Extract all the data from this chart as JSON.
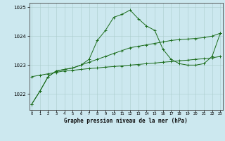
{
  "background_color": "#cce8ef",
  "plot_bg_color": "#cce8ef",
  "grid_color": "#aacccc",
  "line_color": "#1a6b1a",
  "marker_color": "#1a6b1a",
  "title": "Graphe pression niveau de la mer (hPa)",
  "xlim": [
    0,
    23
  ],
  "ylim": [
    1021.45,
    1025.15
  ],
  "yticks": [
    1022,
    1023,
    1024,
    1025
  ],
  "xtick_labels": [
    "0",
    "1",
    "2",
    "3",
    "4",
    "5",
    "6",
    "7",
    "8",
    "9",
    "10",
    "11",
    "12",
    "13",
    "14",
    "15",
    "16",
    "17",
    "18",
    "19",
    "20",
    "21",
    "22",
    "23"
  ],
  "series1_x": [
    0,
    1,
    2,
    3,
    4,
    5,
    6,
    7,
    8,
    9,
    10,
    11,
    12,
    13,
    14,
    15,
    16,
    17,
    18,
    19,
    20,
    21,
    22,
    23
  ],
  "series1_y": [
    1022.6,
    1022.65,
    1022.7,
    1022.75,
    1022.8,
    1022.82,
    1022.85,
    1022.88,
    1022.9,
    1022.93,
    1022.95,
    1022.97,
    1023.0,
    1023.02,
    1023.05,
    1023.07,
    1023.1,
    1023.12,
    1023.15,
    1023.17,
    1023.2,
    1023.22,
    1023.25,
    1023.3
  ],
  "series2_x": [
    0,
    1,
    2,
    3,
    4,
    5,
    6,
    7,
    8,
    9,
    10,
    11,
    12,
    13,
    14,
    15,
    16,
    17,
    18,
    19,
    20,
    21,
    22,
    23
  ],
  "series2_y": [
    1021.65,
    1022.1,
    1022.6,
    1022.8,
    1022.85,
    1022.9,
    1023.0,
    1023.2,
    1023.85,
    1024.2,
    1024.65,
    1024.75,
    1024.9,
    1024.6,
    1024.35,
    1024.2,
    1023.55,
    1023.2,
    1023.05,
    1023.0,
    1023.0,
    1023.05,
    1023.3,
    1024.1
  ],
  "series3_x": [
    0,
    1,
    2,
    3,
    4,
    5,
    6,
    7,
    8,
    9,
    10,
    11,
    12,
    13,
    14,
    15,
    16,
    17,
    18,
    19,
    20,
    21,
    22,
    23
  ],
  "series3_y": [
    1021.65,
    1022.1,
    1022.6,
    1022.8,
    1022.85,
    1022.9,
    1023.0,
    1023.1,
    1023.2,
    1023.3,
    1023.4,
    1023.5,
    1023.6,
    1023.65,
    1023.7,
    1023.75,
    1023.8,
    1023.85,
    1023.88,
    1023.9,
    1023.92,
    1023.95,
    1024.0,
    1024.1
  ]
}
